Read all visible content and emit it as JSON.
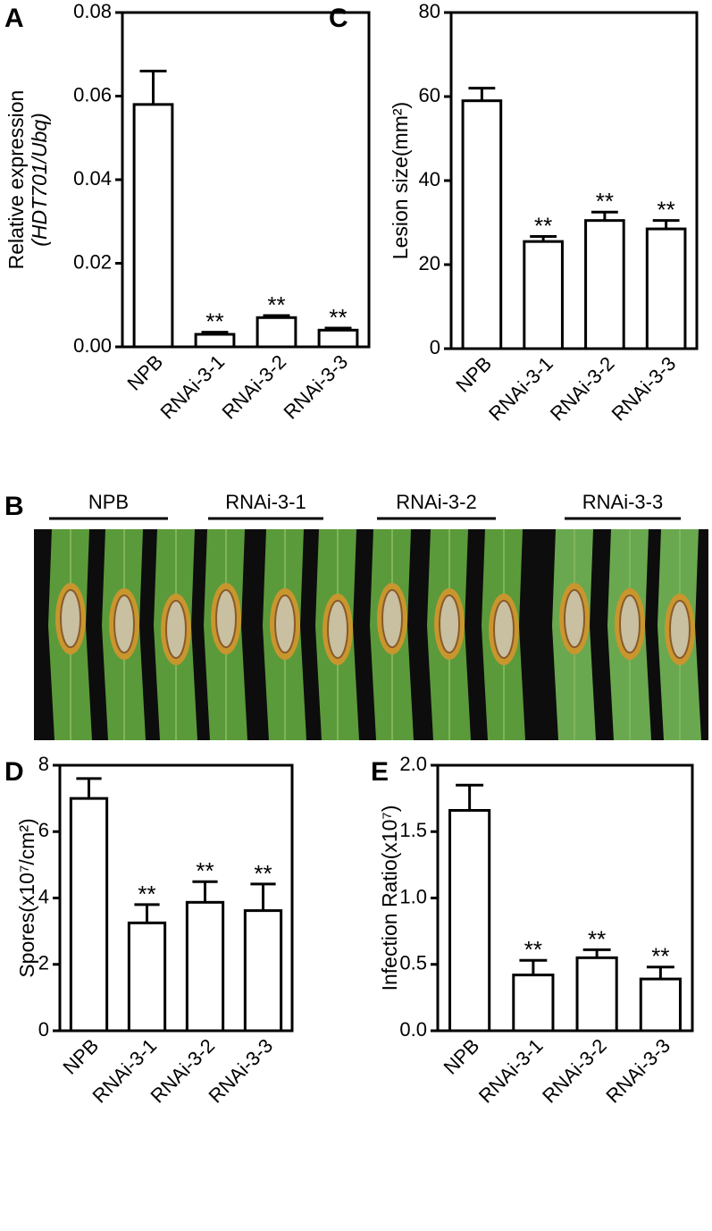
{
  "chart_data": [
    {
      "type": "bar",
      "panel": "A",
      "ylabel": [
        "Relative expression",
        "(HDT701/Ubq)"
      ],
      "categories": [
        "NPB",
        "RNAi-3-1",
        "RNAi-3-2",
        "RNAi-3-3"
      ],
      "values": [
        0.058,
        0.003,
        0.007,
        0.004
      ],
      "errors": [
        0.008,
        0.0005,
        0.0005,
        0.0005
      ],
      "significance": [
        null,
        "**",
        "**",
        "**"
      ],
      "ylim": [
        0,
        0.08
      ],
      "yticks": [
        {
          "value": 0,
          "label": "0.00"
        },
        {
          "value": 0.02,
          "label": "0.02"
        },
        {
          "value": 0.04,
          "label": "0.04"
        },
        {
          "value": 0.06,
          "label": "0.06"
        },
        {
          "value": 0.08,
          "label": "0.08"
        }
      ],
      "color": "#ffffff"
    },
    {
      "type": "bar",
      "panel": "C",
      "ylabel": [
        "Lesion size(mm²)"
      ],
      "categories": [
        "NPB",
        "RNAi-3-1",
        "RNAi-3-2",
        "RNAi-3-3"
      ],
      "values": [
        59,
        25.5,
        30.5,
        28.5
      ],
      "errors": [
        3,
        1.2,
        2,
        2
      ],
      "significance": [
        null,
        "**",
        "**",
        "**"
      ],
      "ylim": [
        0,
        80
      ],
      "yticks": [
        0,
        20,
        40,
        60,
        80
      ],
      "color": "#ffffff"
    },
    {
      "type": "bar",
      "panel": "D",
      "ylabel": [
        "Spores(x10⁷/cm²)"
      ],
      "categories": [
        "NPB",
        "RNAi-3-1",
        "RNAi-3-2",
        "RNAi-3-3"
      ],
      "values": [
        7.0,
        3.25,
        3.87,
        3.62
      ],
      "errors": [
        0.6,
        0.55,
        0.62,
        0.8
      ],
      "significance": [
        null,
        "**",
        "**",
        "**"
      ],
      "ylim": [
        0,
        8
      ],
      "yticks": [
        0,
        2,
        4,
        6,
        8
      ],
      "color": "#ffffff"
    },
    {
      "type": "bar",
      "panel": "E",
      "ylabel": [
        "Infection Ratio(x10⁷)"
      ],
      "categories": [
        "NPB",
        "RNAi-3-1",
        "RNAi-3-2",
        "RNAi-3-3"
      ],
      "values": [
        1.66,
        0.42,
        0.55,
        0.39
      ],
      "errors": [
        0.19,
        0.11,
        0.06,
        0.09
      ],
      "significance": [
        null,
        "**",
        "**",
        "**"
      ],
      "ylim": [
        0,
        2.0
      ],
      "yticks": [
        {
          "value": 0,
          "label": "0.0"
        },
        {
          "value": 0.5,
          "label": "0.5"
        },
        {
          "value": 1.0,
          "label": "1.0"
        },
        {
          "value": 1.5,
          "label": "1.5"
        },
        {
          "value": 2.0,
          "label": "2.0"
        }
      ],
      "color": "#ffffff"
    }
  ],
  "photo": {
    "panel": "B",
    "groups": [
      "NPB",
      "RNAi-3-1",
      "RNAi-3-2",
      "RNAi-3-3"
    ]
  }
}
